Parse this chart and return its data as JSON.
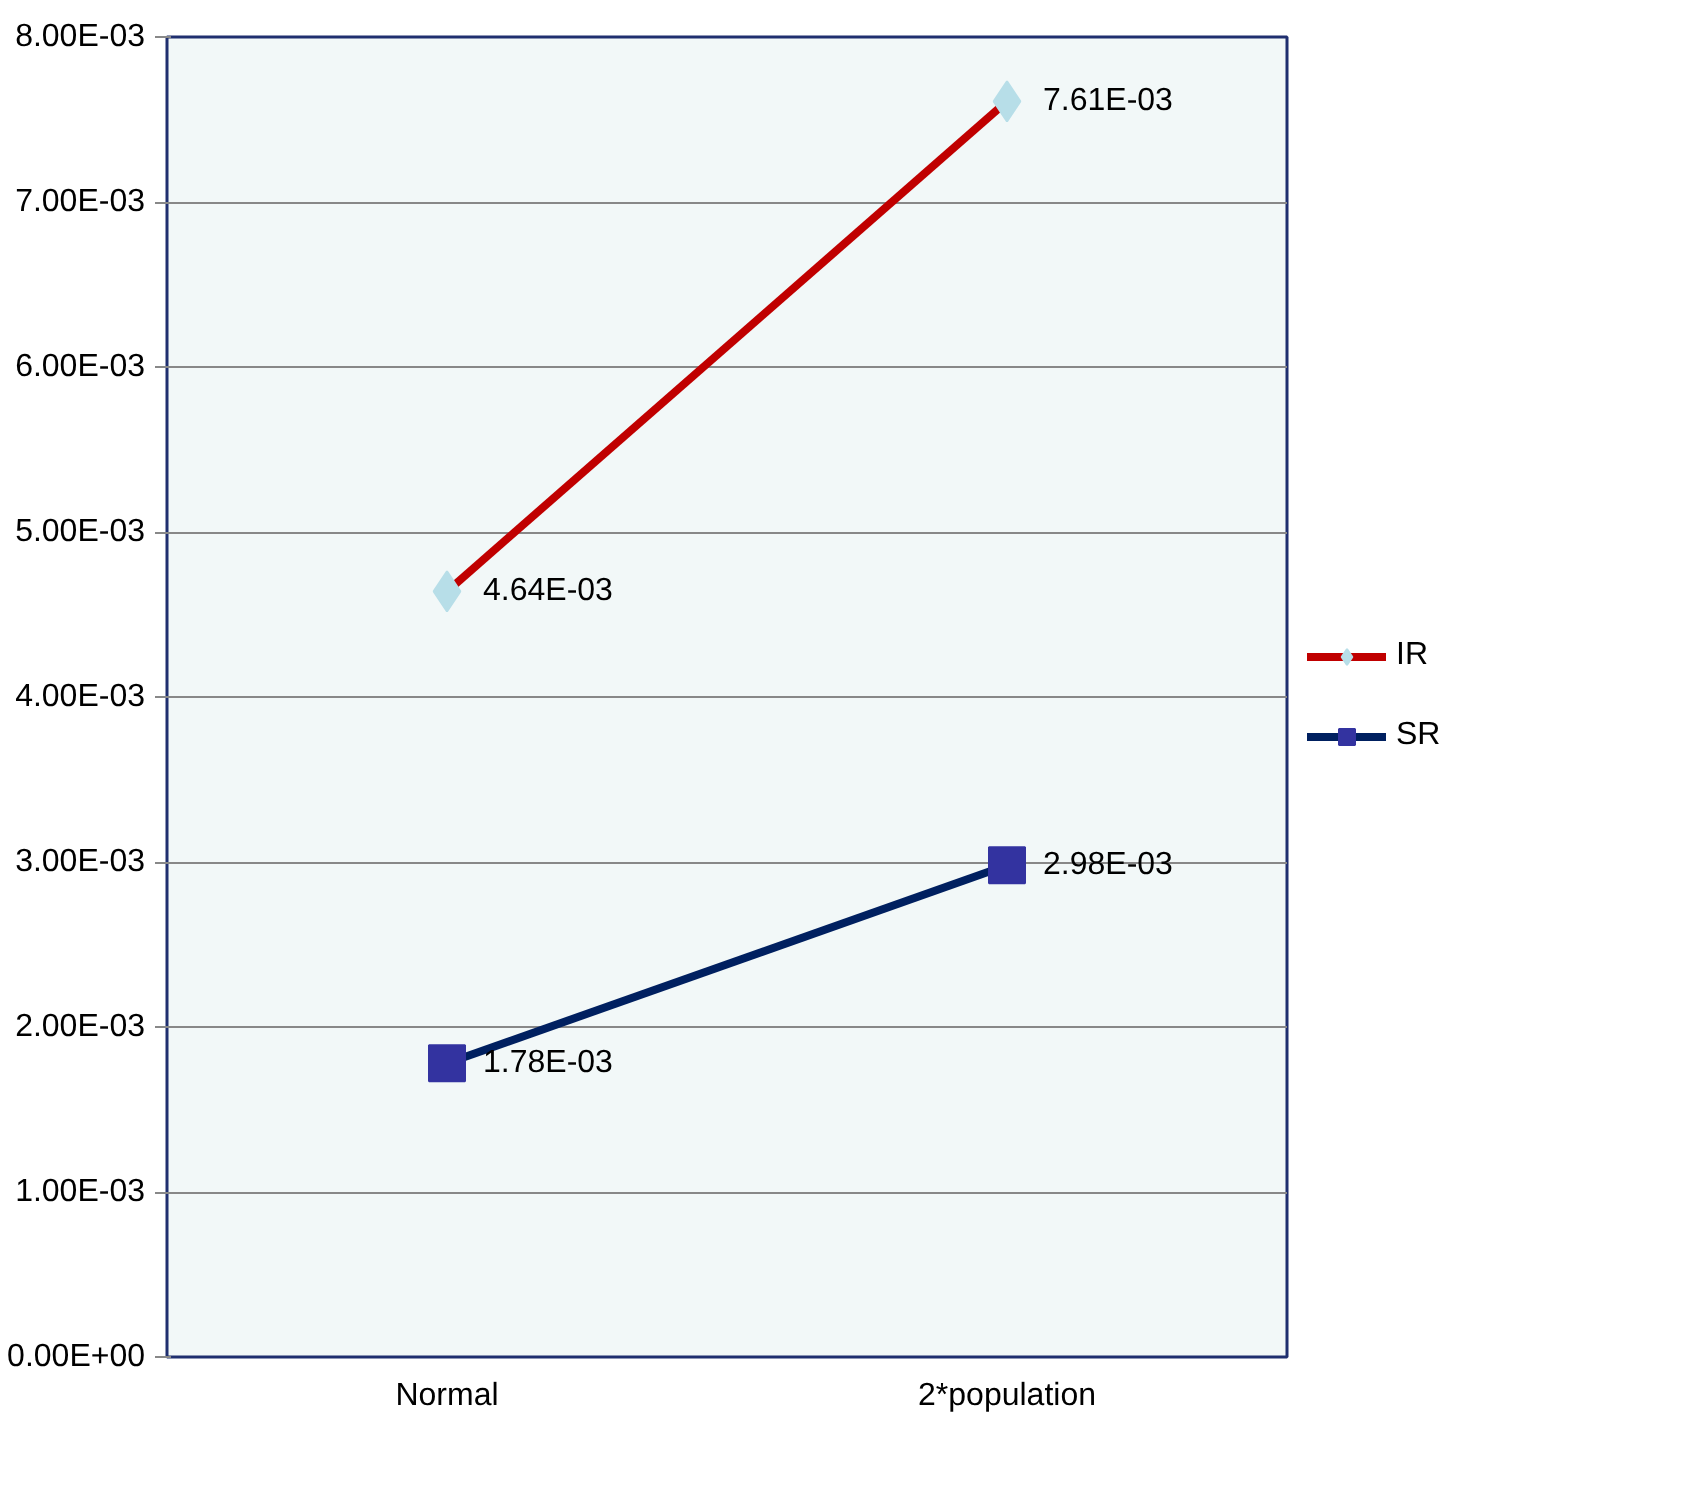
{
  "chart_data": {
    "type": "line",
    "categories": [
      "Normal",
      "2*population"
    ],
    "series": [
      {
        "name": "IR",
        "color": "#c00000",
        "marker": "diamond",
        "colors": [
          "#b7dee8",
          "#b7dee8"
        ],
        "values": [
          0.00464,
          0.00761
        ],
        "value_labels": [
          "4.64E-03",
          "7.61E-03"
        ]
      },
      {
        "name": "SR",
        "color": "#002060",
        "marker": "square",
        "colors": [
          "#3333a0",
          "#3333a0"
        ],
        "values": [
          0.00178,
          0.00298
        ],
        "value_labels": [
          "1.78E-03",
          "2.98E-03"
        ]
      }
    ],
    "ylim": [
      0,
      0.008
    ],
    "yticks": [
      {
        "value": 0,
        "label": "0.00E+00"
      },
      {
        "value": 0.001,
        "label": "1.00E-03"
      },
      {
        "value": 0.002,
        "label": "2.00E-03"
      },
      {
        "value": 0.003,
        "label": "3.00E-03"
      },
      {
        "value": 0.004,
        "label": "4.00E-03"
      },
      {
        "value": 0.005,
        "label": "5.00E-03"
      },
      {
        "value": 0.006,
        "label": "6.00E-03"
      },
      {
        "value": 0.007,
        "label": "7.00E-03"
      },
      {
        "value": 0.008,
        "label": "8.00E-03"
      }
    ],
    "grid": "y",
    "legend": "right",
    "line_style": "solid"
  }
}
